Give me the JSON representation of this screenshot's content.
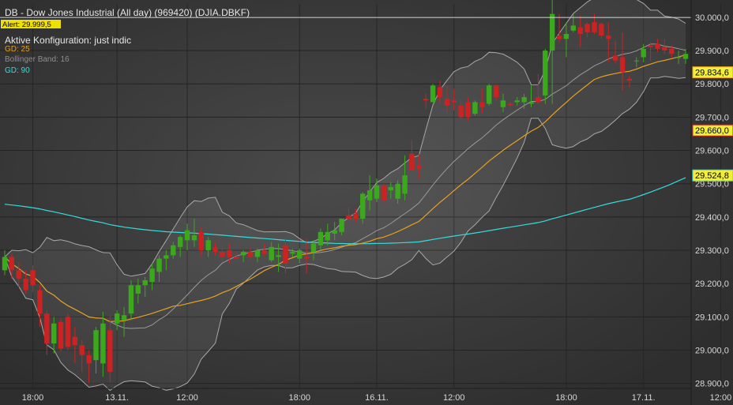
{
  "header": {
    "title": "DB - Dow Jones Industrial (All day) (969420) (DJIA.DBKF)",
    "config": "Aktive Konfiguration: just indic",
    "gd25_label": "GD: 25",
    "bollinger_label": "Bollinger Band: 16",
    "gd90_label": "GD: 90"
  },
  "chart_data": {
    "type": "candlestick",
    "ylim": [
      28885,
      30040
    ],
    "y_ticks": [
      {
        "value": 30000,
        "label": "30.000,0"
      },
      {
        "value": 29900,
        "label": "29.900,0"
      },
      {
        "value": 29800,
        "label": "29.800,0"
      },
      {
        "value": 29700,
        "label": "29.700,0"
      },
      {
        "value": 29600,
        "label": "29.600,0"
      },
      {
        "value": 29500,
        "label": "29.500,0"
      },
      {
        "value": 29400,
        "label": "29.400,0"
      },
      {
        "value": 29300,
        "label": "29.300,0"
      },
      {
        "value": 29200,
        "label": "29.200,0"
      },
      {
        "value": 29100,
        "label": "29.100,0"
      },
      {
        "value": 29000,
        "label": "29.000,0"
      },
      {
        "value": 28900,
        "label": "28.900,0"
      }
    ],
    "x_ticks": [
      {
        "index": 4,
        "label": "18:00"
      },
      {
        "index": 16,
        "label": "13.11."
      },
      {
        "index": 26,
        "label": "12:00"
      },
      {
        "index": 42,
        "label": "18:00"
      },
      {
        "index": 53,
        "label": "16.11."
      },
      {
        "index": 64,
        "label": "12:00"
      },
      {
        "index": 80,
        "label": "18:00"
      },
      {
        "index": 91,
        "label": "17.11."
      },
      {
        "index": 102,
        "label": "12:00"
      }
    ],
    "alert": {
      "value": 29999.5,
      "label": "Alert: 29.999,5"
    },
    "price_tags": [
      {
        "value": 29834.6,
        "label": "29.834,6",
        "color": "#e8a020"
      },
      {
        "value": 29660.0,
        "label": "29.660,0",
        "color": "#cc2222"
      },
      {
        "value": 29524.8,
        "label": "29.524,8",
        "color": "#33dddd"
      }
    ],
    "colors": {
      "up": "#3aaa1c",
      "down": "#cc2222",
      "gd25": "#e8a020",
      "gd90": "#33dddd",
      "band": "#aaaaaa"
    },
    "ohlc": [
      [
        29240,
        29300,
        29225,
        29280
      ],
      [
        29280,
        29290,
        29215,
        29240
      ],
      [
        29240,
        29265,
        29190,
        29215
      ],
      [
        29215,
        29240,
        29170,
        29180
      ],
      [
        29240,
        29255,
        29175,
        29195
      ],
      [
        29180,
        29195,
        29070,
        29110
      ],
      [
        29110,
        29120,
        28985,
        29020
      ],
      [
        29020,
        29100,
        28990,
        29080
      ],
      [
        29085,
        29095,
        28995,
        29005
      ],
      [
        29100,
        29110,
        29000,
        29010
      ],
      [
        29040,
        29070,
        28960,
        29015
      ],
      [
        29015,
        29030,
        28935,
        28985
      ],
      [
        28985,
        29000,
        28900,
        28960
      ],
      [
        28970,
        29070,
        28930,
        29060
      ],
      [
        28960,
        29115,
        28920,
        29080
      ],
      [
        29060,
        29105,
        28905,
        28935
      ],
      [
        29080,
        29120,
        29060,
        29110
      ],
      [
        29090,
        29130,
        29040,
        29105
      ],
      [
        29110,
        29210,
        29090,
        29195
      ],
      [
        29170,
        29215,
        29140,
        29195
      ],
      [
        29195,
        29220,
        29160,
        29210
      ],
      [
        29205,
        29260,
        29180,
        29245
      ],
      [
        29235,
        29285,
        29205,
        29275
      ],
      [
        29275,
        29300,
        29240,
        29285
      ],
      [
        29285,
        29325,
        29275,
        29315
      ],
      [
        29310,
        29345,
        29280,
        29340
      ],
      [
        29330,
        29380,
        29300,
        29360
      ],
      [
        29330,
        29395,
        29310,
        29345
      ],
      [
        29355,
        29370,
        29280,
        29300
      ],
      [
        29300,
        29340,
        29280,
        29330
      ],
      [
        29310,
        29325,
        29285,
        29295
      ],
      [
        29295,
        29310,
        29265,
        29280
      ],
      [
        29300,
        29320,
        29260,
        29280
      ],
      [
        29280,
        29295,
        29270,
        29275
      ],
      [
        29285,
        29300,
        29265,
        29295
      ],
      [
        29295,
        29310,
        29275,
        29280
      ],
      [
        29280,
        29305,
        29265,
        29300
      ],
      [
        29300,
        29320,
        29280,
        29290
      ],
      [
        29270,
        29325,
        29265,
        29310
      ],
      [
        29280,
        29320,
        29235,
        29285
      ],
      [
        29315,
        29340,
        29230,
        29260
      ],
      [
        29290,
        29305,
        29280,
        29295
      ],
      [
        29275,
        29305,
        29260,
        29300
      ],
      [
        29280,
        29335,
        29230,
        29275
      ],
      [
        29295,
        29330,
        29270,
        29320
      ],
      [
        29315,
        29365,
        29300,
        29355
      ],
      [
        29330,
        29380,
        29315,
        29355
      ],
      [
        29350,
        29385,
        29330,
        29360
      ],
      [
        29355,
        29395,
        29345,
        29395
      ],
      [
        29405,
        29430,
        29375,
        29395
      ],
      [
        29410,
        29425,
        29385,
        29395
      ],
      [
        29395,
        29475,
        29380,
        29470
      ],
      [
        29450,
        29525,
        29420,
        29480
      ],
      [
        29455,
        29515,
        29445,
        29495
      ],
      [
        29495,
        29500,
        29440,
        29450
      ],
      [
        29480,
        29505,
        29455,
        29490
      ],
      [
        29455,
        29510,
        29440,
        29500
      ],
      [
        29470,
        29585,
        29450,
        29525
      ],
      [
        29590,
        29630,
        29530,
        29540
      ],
      [
        29555,
        29590,
        29515,
        29545
      ],
      [
        29755,
        29770,
        29725,
        29750
      ],
      [
        29745,
        29800,
        29745,
        29795
      ],
      [
        29790,
        29810,
        29740,
        29760
      ],
      [
        29755,
        29795,
        29715,
        29735
      ],
      [
        29750,
        29785,
        29720,
        29745
      ],
      [
        29735,
        29755,
        29690,
        29700
      ],
      [
        29745,
        29760,
        29690,
        29700
      ],
      [
        29710,
        29750,
        29705,
        29745
      ],
      [
        29745,
        29785,
        29710,
        29730
      ],
      [
        29740,
        29800,
        29735,
        29795
      ],
      [
        29795,
        29790,
        29750,
        29760
      ],
      [
        29730,
        29770,
        29715,
        29750
      ],
      [
        29740,
        29745,
        29730,
        29735
      ],
      [
        29745,
        29760,
        29735,
        29750
      ],
      [
        29745,
        29770,
        29725,
        29760
      ],
      [
        29740,
        29795,
        29730,
        29745
      ],
      [
        29760,
        29830,
        29740,
        29745
      ],
      [
        29765,
        29905,
        29740,
        29900
      ],
      [
        29900,
        30055,
        29740,
        30010
      ],
      [
        29945,
        30010,
        29925,
        29935
      ],
      [
        29935,
        29985,
        29880,
        29950
      ],
      [
        29960,
        30010,
        29955,
        29975
      ],
      [
        29970,
        30005,
        29910,
        29950
      ],
      [
        29980,
        29985,
        29940,
        29955
      ],
      [
        29985,
        30010,
        29950,
        29955
      ],
      [
        29980,
        29985,
        29935,
        29945
      ],
      [
        29945,
        29985,
        29865,
        29935
      ],
      [
        29885,
        29930,
        29860,
        29870
      ],
      [
        29880,
        29955,
        29780,
        29835
      ],
      [
        29815,
        29825,
        29790,
        29810
      ],
      [
        29870,
        29880,
        29850,
        29870
      ],
      [
        29880,
        29920,
        29865,
        29905
      ],
      [
        29915,
        29925,
        29870,
        29910
      ],
      [
        29920,
        29935,
        29895,
        29905
      ],
      [
        29910,
        29935,
        29890,
        29900
      ],
      [
        29905,
        29915,
        29880,
        29890
      ],
      [
        29880,
        29900,
        29860,
        29880
      ],
      [
        29875,
        29905,
        29860,
        29890
      ]
    ]
  }
}
